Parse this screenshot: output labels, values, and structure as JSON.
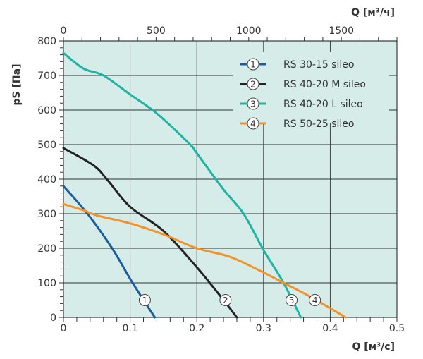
{
  "chart_data": {
    "type": "line",
    "title": "",
    "xlabel": "Q [м³/с]",
    "x2label": "Q [м³/ч]",
    "ylabel": "pS [Па]",
    "xlim": [
      0,
      0.5
    ],
    "x2lim": [
      0,
      1800
    ],
    "ylim": [
      0,
      800
    ],
    "xticks": [
      "0",
      "0.1",
      "0.2",
      "0.3",
      "0.4",
      "0.5"
    ],
    "x2ticks": [
      "0",
      "500",
      "1000",
      "1500"
    ],
    "yticks": [
      "0",
      "100",
      "200",
      "300",
      "400",
      "500",
      "600",
      "700",
      "800"
    ],
    "grid": true,
    "legend_position": "top-right",
    "background": "#d6ece9",
    "series": [
      {
        "marker": "1",
        "name": "RS 30-15 sileo",
        "color": "#1b5c9e",
        "label_at": [
          0.122,
          50
        ],
        "x": [
          0,
          0.036,
          0.073,
          0.103,
          0.137
        ],
        "y": [
          380,
          300,
          200,
          102,
          0
        ]
      },
      {
        "marker": "2",
        "name": "RS 40-20 M sileo",
        "color": "#222222",
        "label_at": [
          0.243,
          50
        ],
        "x": [
          0,
          0.045,
          0.065,
          0.1,
          0.15,
          0.2,
          0.24,
          0.26
        ],
        "y": [
          490,
          440,
          400,
          320,
          250,
          145,
          50,
          0
        ]
      },
      {
        "marker": "3",
        "name": "RS 40-20 L sileo",
        "color": "#1fb3a3",
        "label_at": [
          0.342,
          50
        ],
        "x": [
          0,
          0.03,
          0.06,
          0.1,
          0.14,
          0.19,
          0.2,
          0.24,
          0.27,
          0.3,
          0.33,
          0.356
        ],
        "y": [
          765,
          720,
          700,
          645,
          590,
          500,
          475,
          370,
          300,
          195,
          100,
          0
        ]
      },
      {
        "marker": "4",
        "name": "RS 50-25 sileo",
        "color": "#f29228",
        "label_at": [
          0.377,
          50
        ],
        "x": [
          0,
          0.03,
          0.05,
          0.1,
          0.15,
          0.2,
          0.25,
          0.3,
          0.33,
          0.37,
          0.423
        ],
        "y": [
          328,
          310,
          295,
          272,
          240,
          200,
          175,
          130,
          100,
          60,
          0
        ]
      }
    ]
  }
}
